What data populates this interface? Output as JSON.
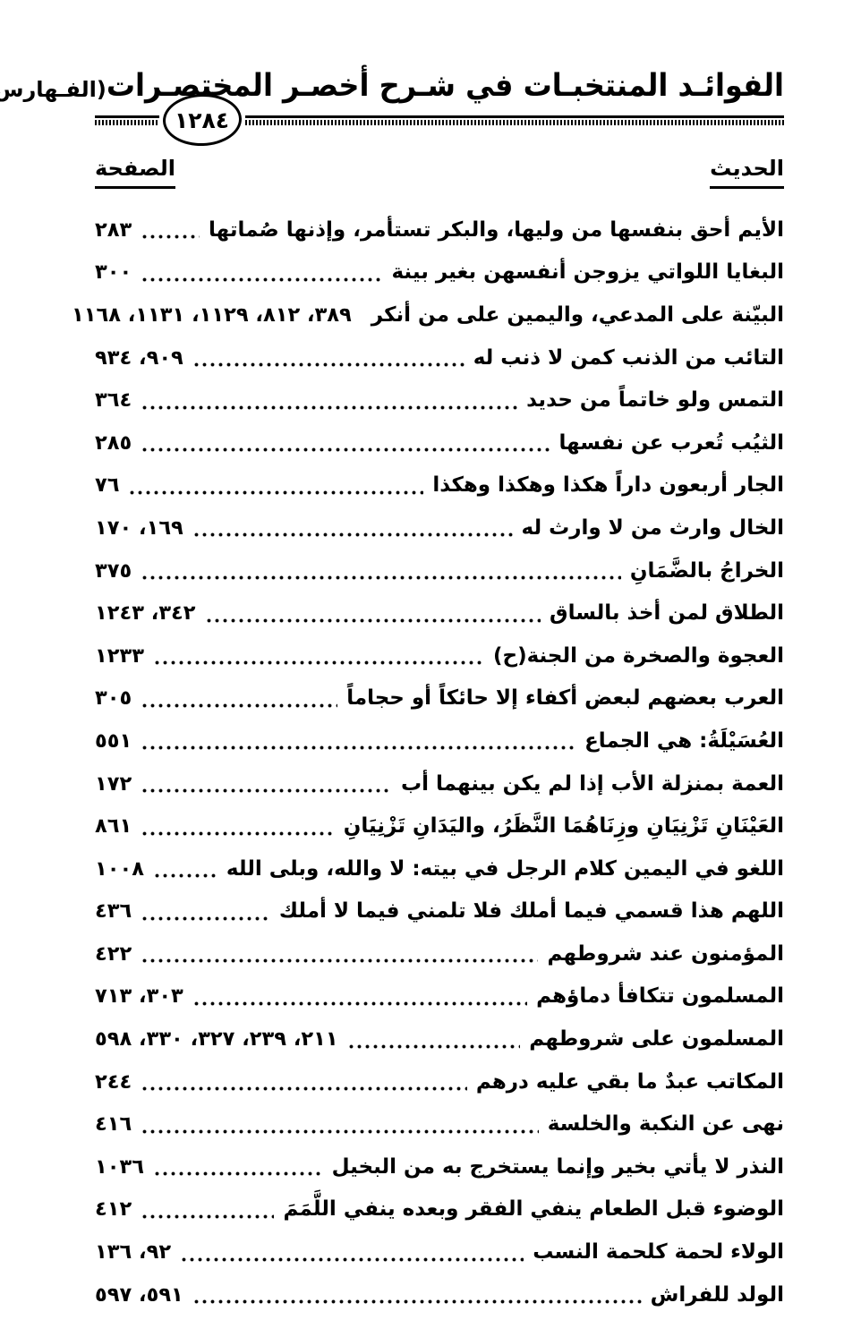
{
  "header": {
    "book_title": "الفوائـد المنتخبـات في شـرح أخصـر المختصـرات",
    "section_label": "(الفـهارس)",
    "page_number": "١٢٨٤"
  },
  "columns": {
    "hadith": "الحديث",
    "page": "الصفحة"
  },
  "entries": [
    {
      "text": "الأيم أحق بنفسها من وليها، والبكر تستأمر، وإذنها صُماتها",
      "pages": "٢٨٣"
    },
    {
      "text": "البغايا اللواتي يزوجن أنفسهن بغير بينة",
      "pages": "٣٠٠"
    },
    {
      "text": "البيّنة على المدعي، واليمين على من أنكر",
      "pages": "٣٨٩، ٨١٢، ١١٢٩، ١١٣١، ١١٦٨"
    },
    {
      "text": "التائب من الذنب كمن لا ذنب له",
      "pages": "٩٠٩، ٩٣٤"
    },
    {
      "text": "التمس ولو خاتماً من حديد",
      "pages": "٣٦٤"
    },
    {
      "text": "الثيُب تُعرب عن نفسها",
      "pages": "٢٨٥"
    },
    {
      "text": "الجار أربعون داراً هكذا وهكذا وهكذا",
      "pages": "٧٦"
    },
    {
      "text": "الخال وارث من لا وارث له",
      "pages": "١٦٩، ١٧٠"
    },
    {
      "text": "الخراجُ بالضَّمَانِ",
      "pages": "٣٧٥"
    },
    {
      "text": "الطلاق لمن أخذ بالساق",
      "pages": "٣٤٢، ١٢٤٣"
    },
    {
      "text": "العجوة والصخرة من الجنة(ح)",
      "pages": "١٢٣٣"
    },
    {
      "text": "العرب بعضهم لبعض أكفاء إلا حائكاً أو حجاماً",
      "pages": "٣٠٥"
    },
    {
      "text": "العُسَيْلَةُ: هي الجماع",
      "pages": "٥٥١"
    },
    {
      "text": "العمة بمنزلة الأب إذا لم يكن بينهما أب",
      "pages": "١٧٢"
    },
    {
      "text": "العَيْنَانِ تَزْنِيَانِ وزِنَاهُمَا النَّظَرُ، واليَدَانِ تَزْنِيَانِ",
      "pages": "٨٦١"
    },
    {
      "text": "اللغو في اليمين كلام الرجل في بيته: لا والله، وبلى الله",
      "pages": "١٠٠٨"
    },
    {
      "text": "اللهم هذا قسمي فيما أملك فلا تلمني فيما لا أملك",
      "pages": "٤٣٦"
    },
    {
      "text": "المؤمنون عند شروطهم",
      "pages": "٤٢٢"
    },
    {
      "text": "المسلمون تتكافأ دماؤهم",
      "pages": "٣٠٣، ٧١٣"
    },
    {
      "text": "المسلمون على شروطهم",
      "pages": "٢١١، ٢٣٩، ٣٢٧، ٣٣٠، ٥٩٨"
    },
    {
      "text": "المكاتب عبدٌ ما بقي عليه درهم",
      "pages": "٢٤٤"
    },
    {
      "text": "نهى عن النكبة والخلسة",
      "pages": "٤١٦"
    },
    {
      "text": "النذر لا يأتي بخير وإنما يستخرج به من البخيل",
      "pages": "١٠٣٦"
    },
    {
      "text": "الوضوء قبل الطعام ينفي الفقر وبعده ينفي اللَّمَمَ",
      "pages": "٤١٢"
    },
    {
      "text": "الولاء لحمة كلحمة النسب",
      "pages": "٩٢، ١٣٦"
    },
    {
      "text": "الولد للفراش",
      "pages": "٥٩١، ٥٩٧"
    }
  ]
}
